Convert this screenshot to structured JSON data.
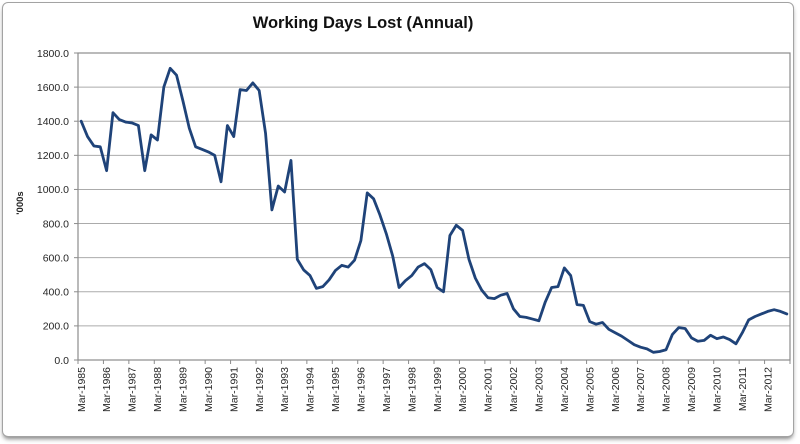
{
  "chart_data": {
    "type": "line",
    "title": "Working Days Lost (Annual)",
    "ylabel": "'000s",
    "ylim": [
      0,
      1800
    ],
    "ytick_step": 200,
    "ytick_labels": [
      "0.0",
      "200.0",
      "400.0",
      "600.0",
      "800.0",
      "1000.0",
      "1200.0",
      "1400.0",
      "1600.0",
      "1800.0"
    ],
    "x_axis_tick_labels": [
      "Mar-1985",
      "Mar-1986",
      "Mar-1987",
      "Mar-1988",
      "Mar-1989",
      "Mar-1990",
      "Mar-1991",
      "Mar-1992",
      "Mar-1993",
      "Mar-1994",
      "Mar-1995",
      "Mar-1996",
      "Mar-1997",
      "Mar-1998",
      "Mar-1999",
      "Mar-2000",
      "Mar-2001",
      "Mar-2002",
      "Mar-2003",
      "Mar-2004",
      "Mar-2005",
      "Mar-2006",
      "Mar-2007",
      "Mar-2008",
      "Mar-2009",
      "Mar-2010",
      "Mar-2011",
      "Mar-2012"
    ],
    "x_label_every": 4,
    "x_frequency": "quarterly",
    "grid": true,
    "legend": "none",
    "series": [
      {
        "name": "Working Days Lost ('000s, annual)",
        "color": "#1f4379",
        "x": [
          "Mar-1985",
          "Jun-1985",
          "Sep-1985",
          "Dec-1985",
          "Mar-1986",
          "Jun-1986",
          "Sep-1986",
          "Dec-1986",
          "Mar-1987",
          "Jun-1987",
          "Sep-1987",
          "Dec-1987",
          "Mar-1988",
          "Jun-1988",
          "Sep-1988",
          "Dec-1988",
          "Mar-1989",
          "Jun-1989",
          "Sep-1989",
          "Dec-1989",
          "Mar-1990",
          "Jun-1990",
          "Sep-1990",
          "Dec-1990",
          "Mar-1991",
          "Jun-1991",
          "Sep-1991",
          "Dec-1991",
          "Mar-1992",
          "Jun-1992",
          "Sep-1992",
          "Dec-1992",
          "Mar-1993",
          "Jun-1993",
          "Sep-1993",
          "Dec-1993",
          "Mar-1994",
          "Jun-1994",
          "Sep-1994",
          "Dec-1994",
          "Mar-1995",
          "Jun-1995",
          "Sep-1995",
          "Dec-1995",
          "Mar-1996",
          "Jun-1996",
          "Sep-1996",
          "Dec-1996",
          "Mar-1997",
          "Jun-1997",
          "Sep-1997",
          "Dec-1997",
          "Mar-1998",
          "Jun-1998",
          "Sep-1998",
          "Dec-1998",
          "Mar-1999",
          "Jun-1999",
          "Sep-1999",
          "Dec-1999",
          "Mar-2000",
          "Jun-2000",
          "Sep-2000",
          "Dec-2000",
          "Mar-2001",
          "Jun-2001",
          "Sep-2001",
          "Dec-2001",
          "Mar-2002",
          "Jun-2002",
          "Sep-2002",
          "Dec-2002",
          "Mar-2003",
          "Jun-2003",
          "Sep-2003",
          "Dec-2003",
          "Mar-2004",
          "Jun-2004",
          "Sep-2004",
          "Dec-2004",
          "Mar-2005",
          "Jun-2005",
          "Sep-2005",
          "Dec-2005",
          "Mar-2006",
          "Jun-2006",
          "Sep-2006",
          "Dec-2006",
          "Mar-2007",
          "Jun-2007",
          "Sep-2007",
          "Dec-2007",
          "Mar-2008",
          "Jun-2008",
          "Sep-2008",
          "Dec-2008",
          "Mar-2009",
          "Jun-2009",
          "Sep-2009",
          "Dec-2009",
          "Mar-2010",
          "Jun-2010",
          "Sep-2010",
          "Dec-2010",
          "Mar-2011",
          "Jun-2011",
          "Sep-2011",
          "Dec-2011",
          "Mar-2012",
          "Jun-2012",
          "Sep-2012",
          "Dec-2012"
        ],
        "values": [
          1400,
          1310,
          1255,
          1250,
          1110,
          1450,
          1410,
          1395,
          1390,
          1375,
          1110,
          1320,
          1290,
          1600,
          1710,
          1670,
          1520,
          1360,
          1250,
          1235,
          1220,
          1200,
          1045,
          1375,
          1310,
          1585,
          1580,
          1625,
          1580,
          1330,
          880,
          1020,
          985,
          1170,
          590,
          528,
          495,
          420,
          430,
          470,
          525,
          555,
          545,
          585,
          700,
          980,
          945,
          850,
          740,
          610,
          425,
          465,
          495,
          545,
          565,
          530,
          425,
          400,
          730,
          790,
          760,
          590,
          480,
          410,
          365,
          360,
          380,
          390,
          300,
          255,
          250,
          240,
          230,
          340,
          425,
          430,
          540,
          495,
          325,
          320,
          225,
          210,
          220,
          180,
          160,
          140,
          115,
          90,
          75,
          65,
          45,
          50,
          60,
          150,
          190,
          185,
          130,
          110,
          115,
          145,
          125,
          135,
          120,
          95,
          160,
          235,
          255,
          270,
          285,
          295,
          285,
          270
        ]
      }
    ],
    "colors": {
      "line": "#1f4379",
      "gridline": "#ababab",
      "axis": "#8c8c8c",
      "tick_text": "#262626",
      "title_text": "#111111",
      "plot_background": "#ffffff",
      "frame_border": "#a3a3a3"
    }
  }
}
